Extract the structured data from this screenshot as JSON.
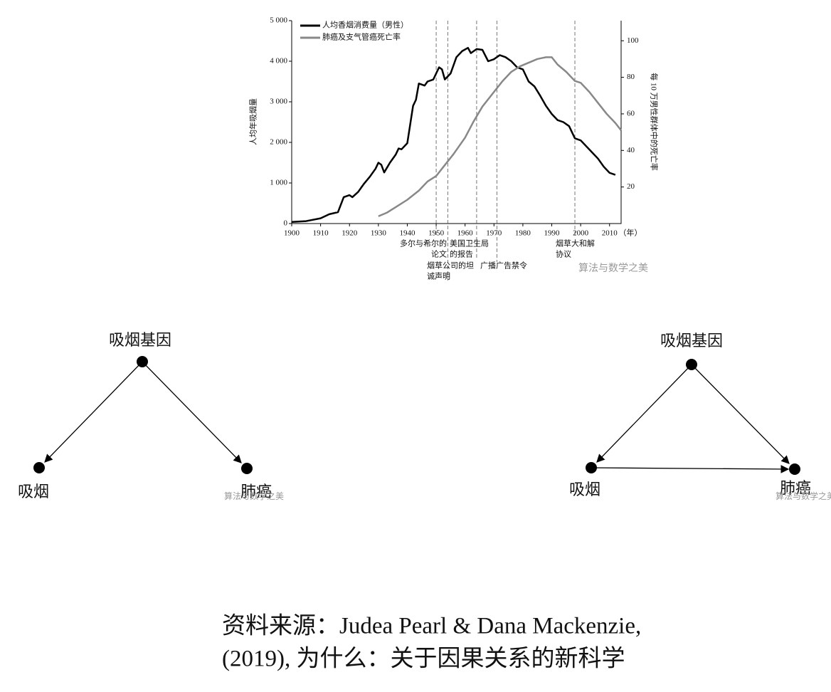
{
  "chart_data": {
    "type": "line",
    "xlabel": "（年）",
    "ylabel": "人均年吸烟量",
    "y2label": "每 10 万男性群体中的死亡率",
    "xlim": [
      1900,
      2014
    ],
    "xticks": [
      1900,
      1910,
      1920,
      1930,
      1940,
      1950,
      1960,
      1970,
      1980,
      1990,
      2000,
      2010
    ],
    "ylim": [
      0,
      5000
    ],
    "yticks": [
      0,
      {
        "value": 1000,
        "label": "1 000"
      },
      {
        "value": 2000,
        "label": "2 000"
      },
      {
        "value": 3000,
        "label": "3 000"
      },
      {
        "value": 4000,
        "label": "4 000"
      },
      {
        "value": 5000,
        "label": "5 000"
      }
    ],
    "y2lim": [
      0,
      111
    ],
    "y2ticks": [
      20,
      40,
      60,
      80,
      100
    ],
    "legend": "upper-left",
    "series": [
      {
        "name": "人均香烟消费量（男性）",
        "color": "#000000",
        "x": [
          1900,
          1905,
          1910,
          1913,
          1916,
          1918,
          1920,
          1921,
          1923,
          1925,
          1927,
          1929,
          1930,
          1931,
          1932,
          1934,
          1936,
          1937,
          1938,
          1940,
          1942,
          1943,
          1944,
          1946,
          1947,
          1949,
          1951,
          1952,
          1953,
          1955,
          1957,
          1959,
          1961,
          1962,
          1964,
          1966,
          1968,
          1970,
          1972,
          1974,
          1976,
          1978,
          1980,
          1982,
          1984,
          1986,
          1988,
          1990,
          1992,
          1994,
          1996,
          1998,
          2000,
          2002,
          2004,
          2006,
          2008,
          2010,
          2012
        ],
        "values": [
          40,
          60,
          130,
          230,
          280,
          650,
          700,
          650,
          780,
          980,
          1150,
          1350,
          1500,
          1450,
          1260,
          1500,
          1700,
          1850,
          1830,
          1980,
          2900,
          3050,
          3450,
          3400,
          3500,
          3550,
          3850,
          3800,
          3550,
          3700,
          4100,
          4250,
          4330,
          4200,
          4300,
          4280,
          4000,
          4050,
          4150,
          4100,
          4000,
          3850,
          3800,
          3500,
          3380,
          3150,
          2900,
          2700,
          2550,
          2500,
          2400,
          2100,
          2050,
          1900,
          1750,
          1600,
          1400,
          1250,
          1200
        ]
      },
      {
        "name": "肺癌及支气管癌死亡率",
        "color": "#888888",
        "axis": "y2",
        "x": [
          1930,
          1933,
          1936,
          1940,
          1944,
          1947,
          1950,
          1953,
          1956,
          1960,
          1963,
          1966,
          1970,
          1973,
          1976,
          1979,
          1982,
          1985,
          1988,
          1990,
          1992,
          1995,
          1998,
          2000,
          2003,
          2006,
          2009,
          2012,
          2014
        ],
        "values": [
          4,
          6,
          9,
          13,
          18,
          23,
          26,
          32,
          38,
          47,
          56,
          64,
          72,
          78,
          83,
          86,
          88,
          90,
          91,
          91,
          87,
          83,
          78,
          77,
          72,
          66,
          60,
          55,
          51
        ]
      }
    ],
    "events": [
      {
        "x": 1950,
        "label": [
          "多尔与希尔的",
          "论文"
        ]
      },
      {
        "x": 1954,
        "label": [
          "烟草公司的坦",
          "诚声明"
        ]
      },
      {
        "x": 1964,
        "label": [
          "美国卫生局",
          "的报告"
        ]
      },
      {
        "x": 1971,
        "label": [
          "广播广告禁令"
        ]
      },
      {
        "x": 1998,
        "label": [
          "烟草大和解",
          "协议"
        ]
      }
    ]
  },
  "watermark": "算法与数学之美",
  "diagrams": [
    {
      "nodes": [
        {
          "label": "吸烟基因"
        },
        {
          "label": "吸烟"
        },
        {
          "label": "肺癌"
        }
      ]
    },
    {
      "nodes": [
        {
          "label": "吸烟基因"
        },
        {
          "label": "吸烟"
        },
        {
          "label": "肺癌"
        }
      ]
    }
  ],
  "source": [
    "资料来源：Judea Pearl & Dana Mackenzie,",
    "(2019), 为什么：关于因果关系的新科学"
  ]
}
